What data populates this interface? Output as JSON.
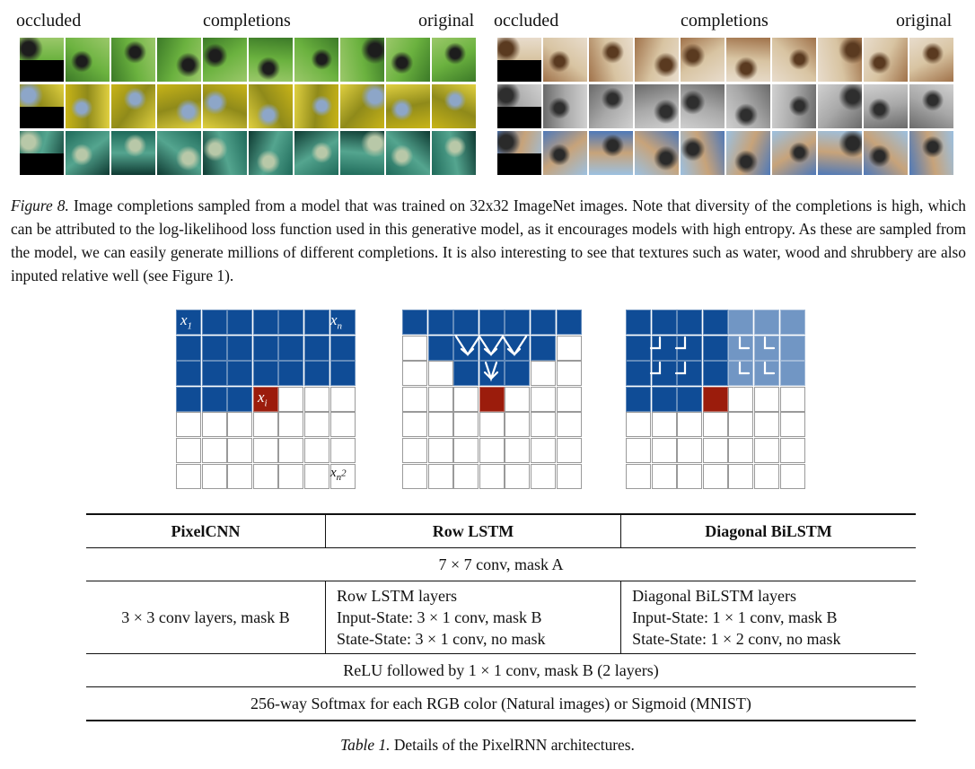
{
  "figure8": {
    "panels": [
      {
        "headers": {
          "occluded": "occluded",
          "completions": "completions",
          "original": "original"
        },
        "rows": [
          {
            "theme": "grass",
            "colors": [
              "#3c7a28",
              "#6bb23f",
              "#1d1d1d",
              "#9bc86a"
            ]
          },
          {
            "theme": "rapeseed",
            "colors": [
              "#c8b418",
              "#8f8a1a",
              "#8da6c8",
              "#e0d040"
            ]
          },
          {
            "theme": "fern",
            "colors": [
              "#1f6a5a",
              "#54a58f",
              "#b8c8a8",
              "#0e3a32"
            ]
          }
        ]
      },
      {
        "headers": {
          "occluded": "occluded",
          "completions": "completions",
          "original": "original"
        },
        "rows": [
          {
            "theme": "monkey",
            "colors": [
              "#a0724a",
              "#d8c4a2",
              "#5a3a20",
              "#e8dccc"
            ]
          },
          {
            "theme": "wood",
            "colors": [
              "#6a6a6a",
              "#a8a8a8",
              "#2e2e2e",
              "#d0d0d0"
            ]
          },
          {
            "theme": "beach",
            "colors": [
              "#4f79b8",
              "#c7a37a",
              "#2a2a2a",
              "#9cc0e0"
            ]
          }
        ]
      }
    ],
    "caption_label": "Figure 8.",
    "caption_text": " Image completions sampled from a model that was trained on 32x32 ImageNet images. Note that diversity of the completions is high, which can be attributed to the log-likelihood loss function used in this generative model, as it encourages models with high entropy. As these are sampled from the model, we can easily generate millions of different completions. It is also interesting to see that textures such as water, wood and shrubbery are also inputed relative well (see Figure 1)."
  },
  "diagrams": {
    "colors": {
      "dark": "#0f4c96",
      "light": "#7196c4",
      "current": "#9b1c0c",
      "empty": "#ffffff"
    },
    "pixelcnn": {
      "label_x1": "x",
      "sub_x1": "1",
      "label_xn": "x",
      "sub_xn": "n",
      "label_xi": "x",
      "sub_xi": "i",
      "label_xn2": "x",
      "sub_xn2": "n",
      "sup_xn2": "2"
    }
  },
  "table1": {
    "headers": [
      "PixelCNN",
      "Row LSTM",
      "Diagonal BiLSTM"
    ],
    "row1": "7 × 7 conv, mask A",
    "row2": {
      "pixelcnn": "3 × 3 conv layers, mask B",
      "rowlstm": [
        "Row LSTM layers",
        "Input-State: 3 × 1 conv, mask B",
        "State-State: 3 × 1 conv, no mask"
      ],
      "bilstm": [
        "Diagonal BiLSTM layers",
        "Input-State: 1 × 1 conv, mask B",
        "State-State: 1 × 2 conv, no mask"
      ]
    },
    "row3": "ReLU followed by 1 × 1 conv, mask B (2 layers)",
    "row4": "256-way Softmax for each RGB color (Natural images) or Sigmoid (MNIST)",
    "caption_label": "Table 1.",
    "caption_text": " Details of the PixelRNN architectures."
  }
}
